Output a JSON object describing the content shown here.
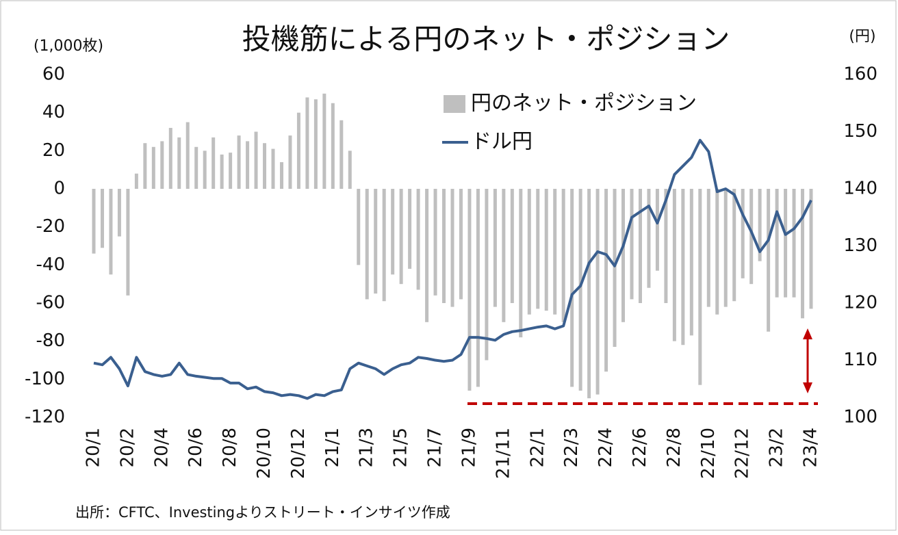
{
  "chart_data": {
    "type": "bar",
    "title": "投機筋による円のネット・ポジション",
    "y_unit": "(1,000枚)",
    "y2_unit": "(円)",
    "source": "出所：CFTC、Investingよりストリート・インサイツ作成",
    "categories": [
      "20/1",
      null,
      null,
      null,
      "20/2",
      null,
      null,
      null,
      "20/4",
      null,
      null,
      null,
      "20/6",
      null,
      null,
      null,
      "20/8",
      null,
      null,
      null,
      "20/10",
      null,
      null,
      null,
      "20/12",
      null,
      null,
      null,
      "21/1",
      null,
      null,
      null,
      "21/3",
      null,
      null,
      null,
      "21/5",
      null,
      null,
      null,
      "21/7",
      null,
      null,
      null,
      "21/9",
      null,
      null,
      null,
      "21/11",
      null,
      null,
      null,
      "22/1",
      null,
      null,
      null,
      "22/3",
      null,
      null,
      null,
      "22/4",
      null,
      null,
      null,
      "22/6",
      null,
      null,
      null,
      "22/8",
      null,
      null,
      null,
      "22/10",
      null,
      null,
      null,
      "22/12",
      null,
      null,
      null,
      "23/2",
      null,
      null,
      null,
      "23/4"
    ],
    "series": [
      {
        "name": "円のネット・ポジション",
        "type": "bar",
        "color": "#bfbfbf",
        "values": [
          -34,
          -31,
          -45,
          -25,
          -56,
          8,
          24,
          22,
          25,
          32,
          27,
          35,
          22,
          20,
          27,
          18,
          19,
          28,
          25,
          30,
          24,
          21,
          14,
          28,
          40,
          48,
          47,
          50,
          45,
          36,
          20,
          -40,
          -58,
          -55,
          -59,
          -45,
          -50,
          -42,
          -53,
          -70,
          -56,
          -60,
          -62,
          -58,
          -106,
          -104,
          -90,
          -62,
          -70,
          -60,
          -78,
          -66,
          -63,
          -64,
          -66,
          -70,
          -104,
          -106,
          -110,
          -108,
          -96,
          -83,
          -70,
          -58,
          -60,
          -52,
          -43,
          -60,
          -80,
          -82,
          -77,
          -103,
          -62,
          -66,
          -62,
          -59,
          -47,
          -50,
          -38,
          -75,
          -57,
          -57,
          -57,
          -68,
          -63
        ]
      },
      {
        "name": "ドル円",
        "type": "line",
        "axis": "y2",
        "color": "#3a5f8f",
        "values": [
          109.5,
          109.2,
          110.5,
          108.5,
          105.5,
          110.5,
          108.0,
          107.5,
          107.2,
          107.5,
          109.5,
          107.5,
          107.2,
          107.0,
          106.8,
          106.8,
          106.0,
          106.0,
          105.0,
          105.3,
          104.5,
          104.3,
          103.8,
          104.0,
          103.8,
          103.3,
          104.0,
          103.8,
          104.5,
          104.8,
          108.5,
          109.5,
          109.0,
          108.5,
          107.5,
          108.5,
          109.2,
          109.5,
          110.5,
          110.3,
          110.0,
          109.8,
          110.0,
          111.0,
          114.0,
          114.0,
          113.8,
          113.5,
          114.5,
          115.0,
          115.2,
          115.5,
          115.8,
          116.0,
          115.5,
          116.0,
          121.5,
          123.0,
          127.0,
          129.0,
          128.5,
          126.5,
          130.0,
          135.0,
          136.0,
          137.0,
          134.0,
          138.0,
          142.5,
          144.0,
          145.5,
          148.5,
          146.5,
          139.5,
          140.0,
          139.0,
          135.5,
          132.5,
          129.0,
          131.0,
          136.0,
          132.0,
          133.0,
          135.0,
          138.0
        ]
      }
    ],
    "ylim": [
      -120,
      60
    ],
    "yticks": [
      -120,
      -100,
      -80,
      -60,
      -40,
      -20,
      0,
      20,
      40,
      60
    ],
    "y2lim": [
      100,
      160
    ],
    "y2ticks": [
      100,
      110,
      120,
      130,
      140,
      150,
      160
    ],
    "reference_line": {
      "value": 102.4,
      "axis": "y2",
      "color": "#c00000"
    }
  }
}
